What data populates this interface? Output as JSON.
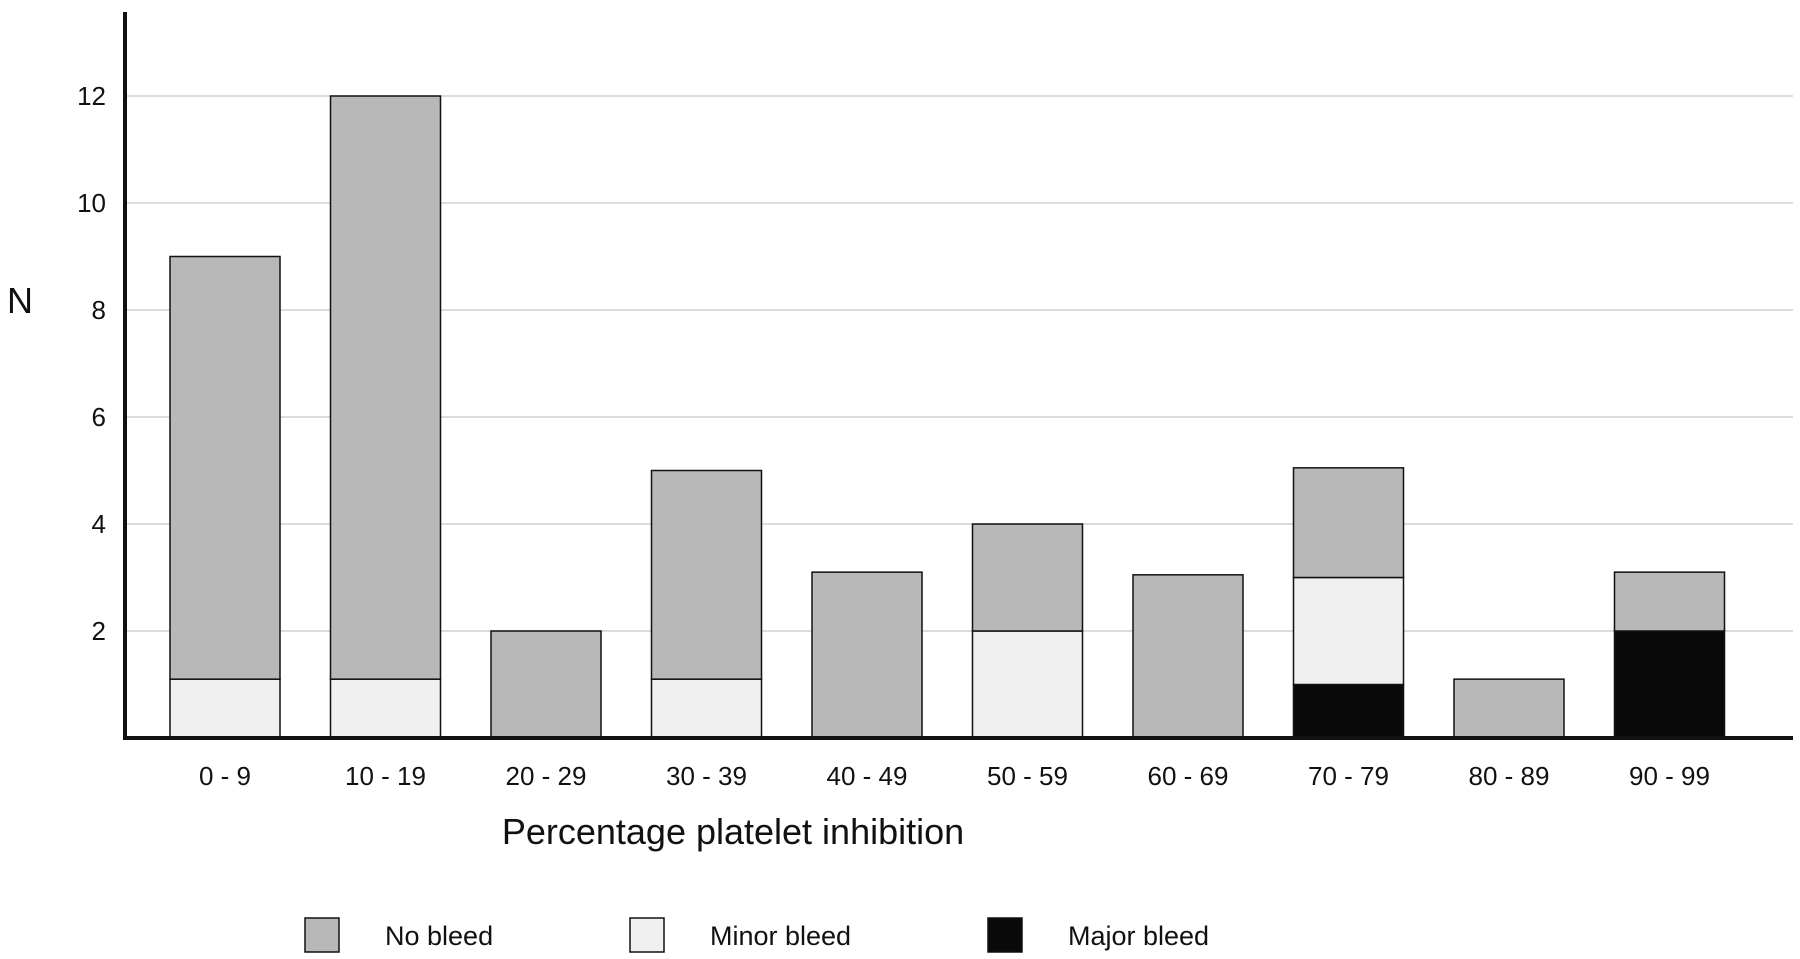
{
  "chart_data": {
    "type": "bar",
    "stacked": true,
    "title": "",
    "xlabel": "Percentage platelet inhibition",
    "ylabel": "N",
    "categories": [
      "0 - 9",
      "10 - 19",
      "20 - 29",
      "30 - 39",
      "40 - 49",
      "50 - 59",
      "60 - 69",
      "70 - 79",
      "80 - 89",
      "90 - 99"
    ],
    "ylim": [
      0,
      13.5
    ],
    "yticks": [
      2,
      4,
      6,
      8,
      10,
      12
    ],
    "grid": true,
    "legend_position": "bottom",
    "series": [
      {
        "name": "Major bleed",
        "color": "#0a0a0a",
        "values": [
          0,
          0,
          0,
          0,
          0,
          0,
          0,
          1,
          0,
          2
        ]
      },
      {
        "name": "Minor bleed",
        "color": "#f0f0f0",
        "values": [
          1.1,
          1.1,
          0,
          1.1,
          0,
          2,
          0,
          2,
          0,
          0
        ]
      },
      {
        "name": "No bleed",
        "color": "#b8b8b8",
        "values": [
          7.9,
          10.9,
          2,
          3.9,
          3.1,
          2,
          3.05,
          2.05,
          1.1,
          1.1
        ]
      }
    ],
    "legend_order": [
      "No bleed",
      "Minor bleed",
      "Major bleed"
    ]
  }
}
